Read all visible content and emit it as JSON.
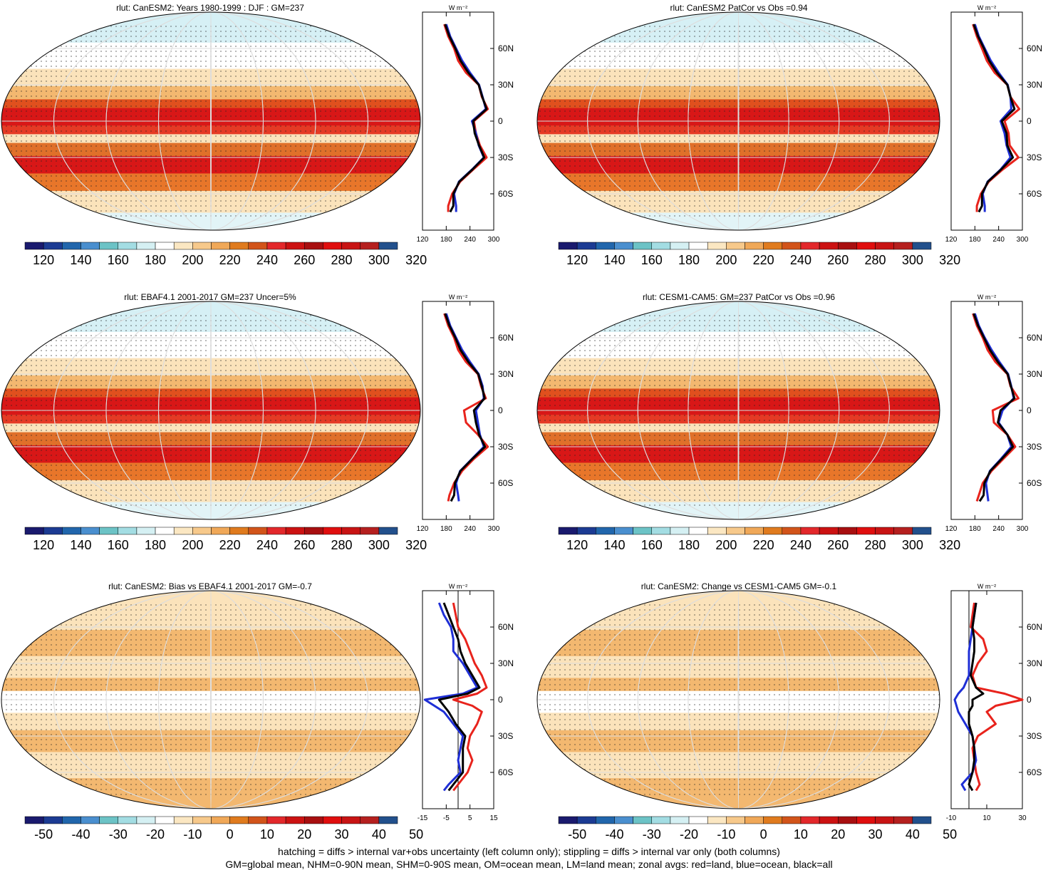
{
  "footer": {
    "line1": "hatching = diffs > internal var+obs uncertainty (left column only); stippling = diffs > internal var only (both columns)",
    "line2": "GM=global mean, NHM=0-90N mean, SHM=0-90S mean, OM=ocean mean, LM=land mean; zonal avgs: red=land, blue=ocean, black=all"
  },
  "zonal_unit": "W m⁻²",
  "lat_labels": [
    "60N",
    "30N",
    "0",
    "30S",
    "60S"
  ],
  "colors": {
    "land": "#e8231c",
    "ocean": "#1f2fd6",
    "all": "#000000"
  },
  "abs_palette": [
    "#1a1a6e",
    "#1c3b93",
    "#2166ac",
    "#4a8fcf",
    "#6cc3c6",
    "#a3dde3",
    "#d5f0f3",
    "#ffffff",
    "#fbe7c2",
    "#f7c98b",
    "#f0a858",
    "#e07b1e",
    "#d2541a",
    "#e3282b",
    "#cc1212",
    "#a80f10",
    "#e00e0e",
    "#c81414",
    "#b5201f",
    "#22508c"
  ],
  "diff_palette": [
    "#1a1a6e",
    "#1c3b93",
    "#2166ac",
    "#4a8fcf",
    "#6cc3c6",
    "#a3dde3",
    "#d5f0f3",
    "#ffffff",
    "#fbe7c2",
    "#f7c98b",
    "#f0a858",
    "#e07b1e",
    "#d2541a",
    "#e3282b",
    "#cc1212",
    "#a80f10",
    "#e00e0e",
    "#c81414",
    "#b5201f",
    "#22508c"
  ],
  "chart_data": [
    {
      "id": "p1",
      "type": "heatmap",
      "title": "rlut: CanESM2: Years 1980-1999 : DJF : GM=237",
      "colorbar_ticks": [
        "120",
        "140",
        "160",
        "180",
        "200",
        "220",
        "240",
        "260",
        "280",
        "300",
        "320"
      ],
      "zonal": {
        "type": "line",
        "xlim": [
          120,
          300
        ],
        "x_ticks": [
          "120",
          "180",
          "240",
          "300"
        ],
        "lat": [
          80,
          70,
          60,
          50,
          40,
          30,
          20,
          10,
          0,
          -10,
          -20,
          -30,
          -40,
          -50,
          -60,
          -70,
          -75
        ],
        "land": [
          175,
          185,
          200,
          210,
          230,
          262,
          270,
          285,
          250,
          255,
          265,
          282,
          248,
          215,
          195,
          185,
          185
        ],
        "ocean": [
          180,
          190,
          205,
          220,
          240,
          263,
          272,
          280,
          245,
          255,
          262,
          275,
          245,
          212,
          200,
          205,
          205
        ],
        "all": [
          177,
          188,
          203,
          216,
          236,
          262,
          271,
          282,
          248,
          252,
          263,
          276,
          246,
          213,
          198,
          198,
          190
        ]
      }
    },
    {
      "id": "p2",
      "type": "heatmap",
      "title": "rlut: CanESM2 PatCor vs Obs =0.94",
      "colorbar_ticks": [
        "120",
        "140",
        "160",
        "180",
        "200",
        "220",
        "240",
        "260",
        "280",
        "300",
        "320"
      ],
      "zonal": {
        "type": "line",
        "xlim": [
          120,
          300
        ],
        "x_ticks": [
          "120",
          "180",
          "240",
          "300"
        ],
        "lat": [
          80,
          70,
          60,
          50,
          40,
          30,
          20,
          10,
          0,
          -10,
          -20,
          -30,
          -40,
          -50,
          -60,
          -70,
          -75
        ],
        "land": [
          175,
          185,
          198,
          210,
          230,
          262,
          270,
          292,
          255,
          265,
          268,
          290,
          250,
          215,
          195,
          185,
          185
        ],
        "ocean": [
          180,
          190,
          205,
          220,
          240,
          263,
          270,
          272,
          245,
          255,
          260,
          270,
          245,
          212,
          200,
          205,
          205
        ],
        "all": [
          177,
          188,
          203,
          216,
          236,
          262,
          270,
          280,
          248,
          260,
          262,
          276,
          246,
          213,
          198,
          198,
          190
        ]
      }
    },
    {
      "id": "p3",
      "type": "heatmap",
      "title": "rlut: EBAF4.1 2001-2017 GM=237 Uncer=5%",
      "colorbar_ticks": [
        "120",
        "140",
        "160",
        "180",
        "200",
        "220",
        "240",
        "260",
        "280",
        "300",
        "320"
      ],
      "zonal": {
        "type": "line",
        "xlim": [
          120,
          300
        ],
        "x_ticks": [
          "120",
          "180",
          "240",
          "300"
        ],
        "lat": [
          80,
          70,
          60,
          50,
          40,
          30,
          20,
          10,
          0,
          -10,
          -20,
          -30,
          -40,
          -50,
          -60,
          -70,
          -75
        ],
        "land": [
          175,
          185,
          200,
          210,
          230,
          260,
          268,
          280,
          225,
          230,
          260,
          285,
          250,
          220,
          200,
          188,
          185
        ],
        "ocean": [
          180,
          190,
          205,
          220,
          240,
          262,
          272,
          275,
          255,
          260,
          265,
          275,
          245,
          215,
          205,
          210,
          212
        ],
        "all": [
          177,
          188,
          203,
          216,
          236,
          261,
          270,
          277,
          250,
          255,
          263,
          278,
          246,
          216,
          202,
          200,
          192
        ]
      }
    },
    {
      "id": "p4",
      "type": "heatmap",
      "title": "rlut: CESM1-CAM5: GM=237 PatCor vs Obs =0.96",
      "colorbar_ticks": [
        "120",
        "140",
        "160",
        "180",
        "200",
        "220",
        "240",
        "260",
        "280",
        "300",
        "320"
      ],
      "zonal": {
        "type": "line",
        "xlim": [
          120,
          300
        ],
        "x_ticks": [
          "120",
          "180",
          "240",
          "300"
        ],
        "lat": [
          80,
          70,
          60,
          50,
          40,
          30,
          20,
          10,
          0,
          -10,
          -20,
          -30,
          -40,
          -50,
          -60,
          -70,
          -75
        ],
        "land": [
          175,
          185,
          200,
          212,
          232,
          262,
          270,
          290,
          225,
          228,
          262,
          282,
          252,
          222,
          200,
          190,
          185
        ],
        "ocean": [
          180,
          190,
          205,
          222,
          242,
          264,
          272,
          278,
          250,
          240,
          262,
          272,
          246,
          218,
          208,
          212,
          214
        ],
        "all": [
          177,
          188,
          203,
          218,
          238,
          263,
          271,
          280,
          245,
          238,
          262,
          276,
          248,
          219,
          204,
          202,
          192
        ]
      }
    },
    {
      "id": "p5",
      "type": "heatmap",
      "title": "rlut: CanESM2: Bias vs EBAF4.1 2001-2017 GM=-0.7",
      "colorbar_ticks": [
        "-50",
        "-40",
        "-30",
        "-20",
        "-10",
        "0",
        "10",
        "20",
        "30",
        "40",
        "50"
      ],
      "zonal": {
        "type": "line",
        "xlim": [
          -15,
          15
        ],
        "x_ticks": [
          "-15",
          "-5",
          "5",
          "15"
        ],
        "lat": [
          80,
          70,
          60,
          50,
          40,
          30,
          20,
          10,
          5,
          0,
          -5,
          -10,
          -20,
          -30,
          -40,
          -50,
          -60,
          -70,
          -75
        ],
        "land": [
          -2,
          -1,
          0,
          3,
          5,
          7,
          10,
          12,
          8,
          -2,
          6,
          10,
          8,
          5,
          4,
          6,
          4,
          0,
          -2
        ],
        "ocean": [
          -8,
          -6,
          -3,
          -2,
          -2,
          2,
          5,
          8,
          2,
          -14,
          -10,
          -6,
          -2,
          2,
          1,
          0,
          1,
          -4,
          -6
        ],
        "all": [
          -6,
          -4,
          -2,
          0,
          1,
          3,
          6,
          9,
          4,
          -8,
          -6,
          -4,
          -1,
          3,
          2,
          2,
          2,
          -2,
          -4
        ]
      }
    },
    {
      "id": "p6",
      "type": "heatmap",
      "title": "rlut: CanESM2: Change vs CESM1-CAM5 GM=-0.1",
      "colorbar_ticks": [
        "-50",
        "-40",
        "-30",
        "-20",
        "-10",
        "0",
        "10",
        "20",
        "30",
        "40",
        "50"
      ],
      "zonal": {
        "type": "line",
        "xlim": [
          -10,
          30
        ],
        "x_ticks": [
          "-10",
          "10",
          "30"
        ],
        "lat": [
          80,
          70,
          60,
          50,
          40,
          30,
          20,
          10,
          5,
          0,
          -5,
          -10,
          -20,
          -30,
          -40,
          -50,
          -60,
          -70,
          -75
        ],
        "land": [
          3,
          2,
          1,
          8,
          10,
          5,
          2,
          4,
          20,
          30,
          15,
          10,
          15,
          5,
          2,
          3,
          4,
          6,
          4
        ],
        "ocean": [
          4,
          3,
          2,
          1,
          0,
          0,
          0,
          -3,
          -6,
          -8,
          -7,
          -6,
          -2,
          2,
          3,
          4,
          2,
          -4,
          -2
        ],
        "all": [
          4,
          3,
          2,
          3,
          3,
          2,
          1,
          4,
          8,
          2,
          2,
          0,
          0,
          2,
          3,
          3,
          2,
          0,
          2
        ]
      }
    }
  ]
}
